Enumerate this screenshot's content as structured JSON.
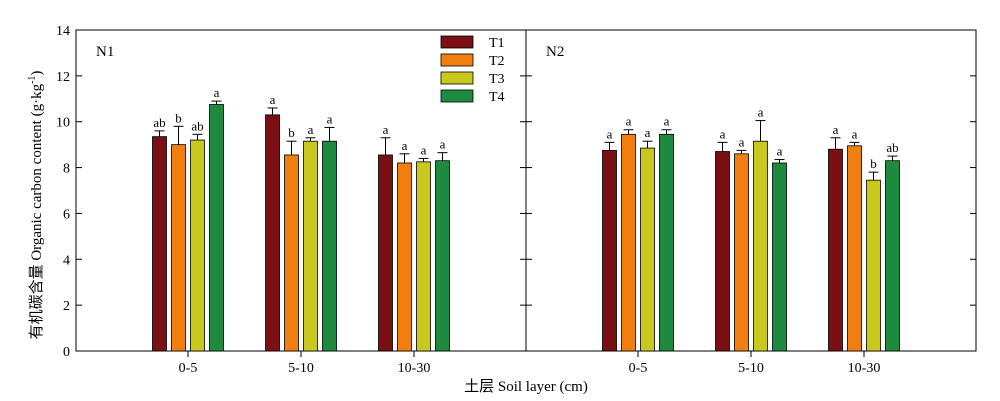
{
  "figure": {
    "ylabel": "有机碳含量 Organic carbon content (g·kg",
    "ylabel_sup": "-1",
    "ylabel_close": ")",
    "xlabel": "土层 Soil layer (cm)"
  },
  "chart_data": {
    "type": "bar",
    "ylim": [
      0,
      14
    ],
    "yticks": [
      0,
      2,
      4,
      6,
      8,
      10,
      12,
      14
    ],
    "grid": false,
    "legend_position": "top-right of left panel",
    "categories": [
      "0-5",
      "5-10",
      "10-30"
    ],
    "series_colors": [
      "#7a0f14",
      "#f07f10",
      "#c8c81e",
      "#1e8a3e"
    ],
    "legend": [
      "T1",
      "T2",
      "T3",
      "T4"
    ],
    "panels": [
      {
        "label": "N1",
        "series": [
          {
            "name": "T1",
            "values": [
              9.35,
              10.3,
              8.55
            ],
            "errors": [
              0.25,
              0.3,
              0.75
            ],
            "letters": [
              "ab",
              "a",
              "a"
            ]
          },
          {
            "name": "T2",
            "values": [
              9.0,
              8.55,
              8.2
            ],
            "errors": [
              0.8,
              0.6,
              0.4
            ],
            "letters": [
              "b",
              "b",
              "a"
            ]
          },
          {
            "name": "T3",
            "values": [
              9.2,
              9.15,
              8.25
            ],
            "errors": [
              0.25,
              0.15,
              0.15
            ],
            "letters": [
              "ab",
              "a",
              "a"
            ]
          },
          {
            "name": "T4",
            "values": [
              10.75,
              9.15,
              8.3
            ],
            "errors": [
              0.15,
              0.6,
              0.35
            ],
            "letters": [
              "a",
              "a",
              "a"
            ]
          }
        ]
      },
      {
        "label": "N2",
        "series": [
          {
            "name": "T1",
            "values": [
              8.75,
              8.7,
              8.8
            ],
            "errors": [
              0.35,
              0.4,
              0.5
            ],
            "letters": [
              "a",
              "a",
              "a"
            ]
          },
          {
            "name": "T2",
            "values": [
              9.45,
              8.6,
              8.95
            ],
            "errors": [
              0.2,
              0.15,
              0.15
            ],
            "letters": [
              "a",
              "a",
              "a"
            ]
          },
          {
            "name": "T3",
            "values": [
              8.85,
              9.15,
              7.45
            ],
            "errors": [
              0.3,
              0.9,
              0.35
            ],
            "letters": [
              "a",
              "a",
              "b"
            ]
          },
          {
            "name": "T4",
            "values": [
              9.45,
              8.2,
              8.3
            ],
            "errors": [
              0.2,
              0.15,
              0.2
            ],
            "letters": [
              "a",
              "a",
              "ab"
            ]
          }
        ]
      }
    ]
  }
}
